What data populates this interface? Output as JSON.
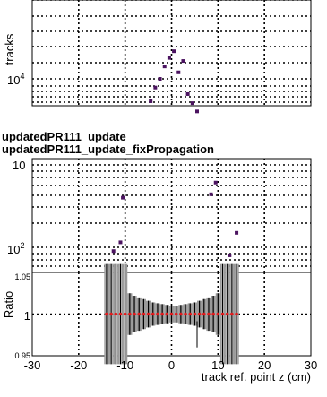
{
  "chart_data": [
    {
      "type": "scatter",
      "ylabel": "tracks",
      "yscale": "log",
      "grid": true,
      "tick_labels_y": [
        {
          "base": "10",
          "exp": "4"
        }
      ],
      "series": [
        {
          "color": "#4b1360",
          "points": [
            [
              -4.5,
              7200
            ],
            [
              -3.5,
              8800
            ],
            [
              -2.5,
              10000
            ],
            [
              -1.5,
              12000
            ],
            [
              -0.5,
              13600
            ],
            [
              0.5,
              15000
            ],
            [
              1.5,
              11000
            ],
            [
              2.5,
              13000
            ],
            [
              3.5,
              8000
            ],
            [
              4.5,
              7000
            ],
            [
              5.5,
              6200
            ]
          ]
        }
      ]
    },
    {
      "type": "scatter",
      "legend": [
        "updatedPR111_update",
        "updatedPR111_update_fixPropagation"
      ],
      "yscale": "log",
      "grid": true,
      "tick_labels_y": [
        {
          "base": "10",
          "exp": ""
        },
        {
          "base": "10",
          "exp": "2"
        }
      ],
      "series": [
        {
          "color": "#4b1360",
          "points": [
            [
              -12.5,
              90
            ],
            [
              -11,
              115
            ],
            [
              -10.5,
              400
            ],
            [
              8.5,
              440
            ],
            [
              9.5,
              610
            ],
            [
              12.5,
              80
            ],
            [
              14,
              150
            ]
          ]
        }
      ]
    },
    {
      "type": "scatter",
      "ylabel": "Ratio",
      "xlabel": "track ref. point z (cm)",
      "xlim": [
        -30,
        30
      ],
      "ylim": [
        0.95,
        1.05
      ],
      "grid": true,
      "x_ticks": [
        "-30",
        "-20",
        "-10",
        "0",
        "10",
        "20",
        "30"
      ],
      "y_ticks": [
        "0.95",
        "1",
        "1.05"
      ],
      "marker_color": "#e31a1c",
      "points": [
        [
          -14,
          1
        ],
        [
          -13,
          1
        ],
        [
          -12,
          1
        ],
        [
          -11,
          1
        ],
        [
          -10,
          1
        ],
        [
          -9,
          1
        ],
        [
          -8,
          1
        ],
        [
          -7,
          1
        ],
        [
          -6,
          1
        ],
        [
          -5,
          1
        ],
        [
          -4,
          1
        ],
        [
          -3,
          1
        ],
        [
          -2,
          1
        ],
        [
          -1,
          1
        ],
        [
          0,
          1
        ],
        [
          1,
          1
        ],
        [
          2,
          1
        ],
        [
          3,
          1
        ],
        [
          4,
          1
        ],
        [
          5,
          1
        ],
        [
          6,
          1
        ],
        [
          7,
          1
        ],
        [
          8,
          1
        ],
        [
          9,
          1
        ],
        [
          10,
          1
        ],
        [
          11,
          1
        ],
        [
          12,
          1
        ],
        [
          13,
          1
        ],
        [
          14,
          1
        ]
      ],
      "error_half_widths": [
        0.06,
        0.06,
        0.06,
        0.06,
        0.06,
        0.025,
        0.022,
        0.02,
        0.018,
        0.016,
        0.014,
        0.013,
        0.012,
        0.011,
        0.01,
        0.01,
        0.011,
        0.012,
        0.013,
        0.014,
        0.016,
        0.018,
        0.02,
        0.022,
        0.025,
        0.06,
        0.06,
        0.06,
        0.06
      ],
      "band_colors": {
        "outer": "#9a9a9a",
        "inner": "#d8d8d8"
      }
    }
  ]
}
